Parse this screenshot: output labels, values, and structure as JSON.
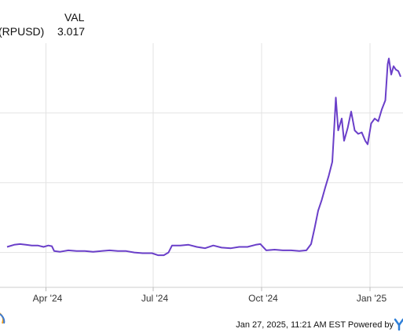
{
  "chart_data": {
    "type": "line",
    "series": [
      {
        "name": "(RPUSD)",
        "color": "#6a3fc9",
        "points": [
          [
            "2024-02-28",
            0.58
          ],
          [
            "2024-03-05",
            0.61
          ],
          [
            "2024-03-10",
            0.62
          ],
          [
            "2024-03-15",
            0.61
          ],
          [
            "2024-03-20",
            0.6
          ],
          [
            "2024-03-25",
            0.6
          ],
          [
            "2024-03-30",
            0.58
          ],
          [
            "2024-04-03",
            0.6
          ],
          [
            "2024-04-06",
            0.59
          ],
          [
            "2024-04-08",
            0.52
          ],
          [
            "2024-04-13",
            0.51
          ],
          [
            "2024-04-20",
            0.53
          ],
          [
            "2024-04-27",
            0.52
          ],
          [
            "2024-05-04",
            0.52
          ],
          [
            "2024-05-11",
            0.51
          ],
          [
            "2024-05-18",
            0.52
          ],
          [
            "2024-05-25",
            0.53
          ],
          [
            "2024-06-01",
            0.52
          ],
          [
            "2024-06-08",
            0.52
          ],
          [
            "2024-06-15",
            0.5
          ],
          [
            "2024-06-22",
            0.49
          ],
          [
            "2024-06-30",
            0.49
          ],
          [
            "2024-07-05",
            0.46
          ],
          [
            "2024-07-10",
            0.46
          ],
          [
            "2024-07-14",
            0.5
          ],
          [
            "2024-07-17",
            0.6
          ],
          [
            "2024-07-24",
            0.6
          ],
          [
            "2024-07-31",
            0.61
          ],
          [
            "2024-08-07",
            0.58
          ],
          [
            "2024-08-14",
            0.56
          ],
          [
            "2024-08-21",
            0.6
          ],
          [
            "2024-08-28",
            0.57
          ],
          [
            "2024-09-05",
            0.56
          ],
          [
            "2024-09-12",
            0.58
          ],
          [
            "2024-09-19",
            0.58
          ],
          [
            "2024-09-26",
            0.61
          ],
          [
            "2024-09-30",
            0.62
          ],
          [
            "2024-10-05",
            0.53
          ],
          [
            "2024-10-12",
            0.54
          ],
          [
            "2024-10-19",
            0.53
          ],
          [
            "2024-10-26",
            0.53
          ],
          [
            "2024-11-02",
            0.52
          ],
          [
            "2024-11-08",
            0.53
          ],
          [
            "2024-11-12",
            0.62
          ],
          [
            "2024-11-15",
            0.85
          ],
          [
            "2024-11-18",
            1.1
          ],
          [
            "2024-11-21",
            1.25
          ],
          [
            "2024-11-24",
            1.43
          ],
          [
            "2024-11-27",
            1.6
          ],
          [
            "2024-11-30",
            1.8
          ],
          [
            "2024-12-02",
            2.4
          ],
          [
            "2024-12-03",
            2.72
          ],
          [
            "2024-12-05",
            2.25
          ],
          [
            "2024-12-08",
            2.42
          ],
          [
            "2024-12-10",
            2.1
          ],
          [
            "2024-12-13",
            2.28
          ],
          [
            "2024-12-16",
            2.52
          ],
          [
            "2024-12-19",
            2.25
          ],
          [
            "2024-12-22",
            2.2
          ],
          [
            "2024-12-25",
            2.22
          ],
          [
            "2024-12-28",
            2.1
          ],
          [
            "2024-12-30",
            2.05
          ],
          [
            "2025-01-02",
            2.35
          ],
          [
            "2025-01-05",
            2.42
          ],
          [
            "2025-01-08",
            2.38
          ],
          [
            "2025-01-11",
            2.55
          ],
          [
            "2025-01-14",
            2.68
          ],
          [
            "2025-01-16",
            3.2
          ],
          [
            "2025-01-17",
            3.28
          ],
          [
            "2025-01-19",
            3.05
          ],
          [
            "2025-01-21",
            3.17
          ],
          [
            "2025-01-23",
            3.12
          ],
          [
            "2025-01-25",
            3.1
          ],
          [
            "2025-01-27",
            3.02
          ]
        ]
      }
    ],
    "x_ticks": [
      {
        "label": "Apr '24",
        "date": "2024-04-01"
      },
      {
        "label": "Jul '24",
        "date": "2024-07-01"
      },
      {
        "label": "Oct '24",
        "date": "2024-10-01"
      },
      {
        "label": "Jan '25",
        "date": "2025-01-01"
      }
    ],
    "xlim": [
      "2024-02-22",
      "2025-01-29"
    ],
    "ylim": [
      0.0,
      3.5
    ],
    "y_gridlines": [
      0.5,
      1.5,
      2.5
    ],
    "grid": true,
    "legend": {
      "column_header": "VAL",
      "series_label": "(RPUSD)",
      "value": "3.017"
    },
    "footer_text": "Jan 27, 2025, 11:21 AM EST Powered by"
  }
}
